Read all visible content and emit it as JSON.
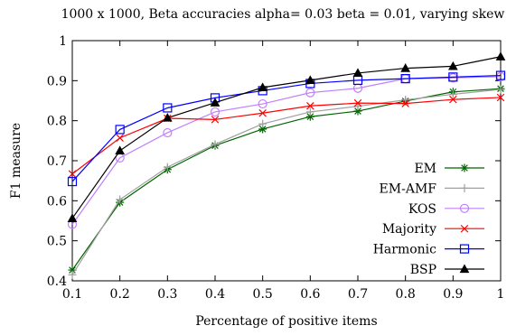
{
  "chart_data": {
    "type": "line",
    "title": "1000 x 1000, Beta accuracies alpha= 0.03 beta = 0.01, varying skew",
    "xlabel": "Percentage of positive items",
    "ylabel": "F1 measure",
    "xlim": [
      0.1,
      1
    ],
    "ylim": [
      0.4,
      1
    ],
    "xticks": [
      "0.1",
      "0.2",
      "0.3",
      "0.4",
      "0.5",
      "0.6",
      "0.7",
      "0.8",
      "0.9",
      "1"
    ],
    "yticks": [
      "0.4",
      "0.5",
      "0.6",
      "0.7",
      "0.8",
      "0.9",
      "1"
    ],
    "grid": false,
    "legend_position": "bottom-right",
    "x": [
      0.1,
      0.2,
      0.3,
      0.4,
      0.5,
      0.6,
      0.7,
      0.8,
      0.9,
      1.0
    ],
    "series": [
      {
        "name": "EM",
        "color": "#006400",
        "marker": "asterisk",
        "values": [
          0.427,
          0.596,
          0.678,
          0.738,
          0.779,
          0.81,
          0.824,
          0.849,
          0.872,
          0.88
        ]
      },
      {
        "name": "EM-AMF",
        "color": "#a0a0a0",
        "marker": "plus",
        "values": [
          0.415,
          0.603,
          0.684,
          0.741,
          0.792,
          0.822,
          0.836,
          0.852,
          0.866,
          0.878
        ]
      },
      {
        "name": "KOS",
        "color": "#c080ff",
        "marker": "circle",
        "values": [
          0.541,
          0.707,
          0.77,
          0.822,
          0.842,
          0.87,
          0.881,
          0.905,
          0.907,
          0.91
        ]
      },
      {
        "name": "Majority",
        "color": "#ff0000",
        "marker": "cross",
        "values": [
          0.667,
          0.757,
          0.806,
          0.803,
          0.819,
          0.837,
          0.844,
          0.843,
          0.853,
          0.858
        ]
      },
      {
        "name": "Harmonic",
        "color": "#0000ff",
        "marker": "square",
        "values": [
          0.648,
          0.778,
          0.832,
          0.857,
          0.875,
          0.893,
          0.901,
          0.905,
          0.909,
          0.913
        ]
      },
      {
        "name": "BSP",
        "color": "#000000",
        "marker": "triangle",
        "values": [
          0.556,
          0.725,
          0.807,
          0.845,
          0.883,
          0.901,
          0.919,
          0.931,
          0.936,
          0.96
        ]
      }
    ]
  }
}
